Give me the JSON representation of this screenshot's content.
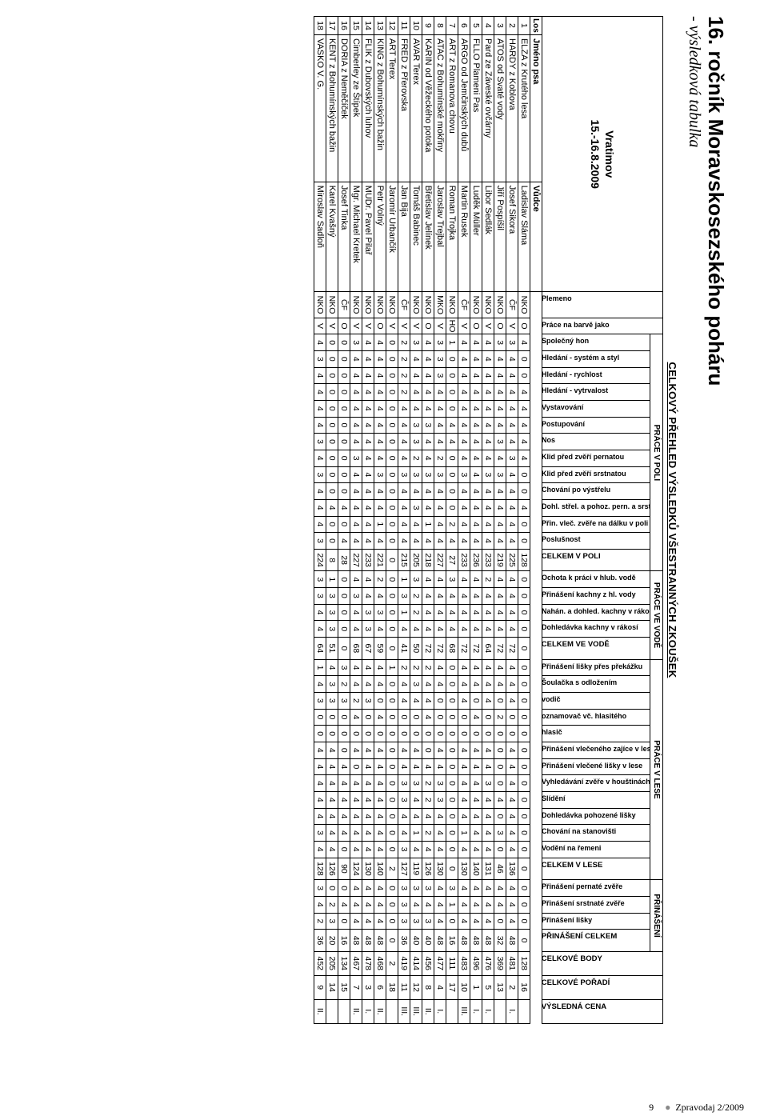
{
  "page_title": "16. ročník Moravskosezského poháru",
  "page_subtitle": "- výsledková tabulka",
  "overview_title": "CELKOVÝ PŘEHLED VÝSLEDKŮ VŠESTRANNÝCH ZKOUŠEK",
  "event": {
    "place": "Vratimov",
    "date": "15.-16.8.2009"
  },
  "head": {
    "los": "Los",
    "dog": "Jméno psa",
    "handler": "Vůdce",
    "breed": "Plemeno",
    "color_work": "Práce na barvě jako"
  },
  "sections": {
    "field": "PRÁCE V POLI",
    "water": "PRÁCE VE VODĚ",
    "forest": "PRÁCE V LESE",
    "retrieve": "PŘINÁŠENÍ"
  },
  "field_cols": [
    "Společný hon",
    "Hledání - systém a styl",
    "Hledání - rychlost",
    "Hledání - vytrvalost",
    "Vystavování",
    "Postupování",
    "Nos",
    "Klid před zvěří pernatou",
    "Klid před zvěří srstnatou",
    "Chování po výstřelu",
    "Dohl. střel. a pohoz. pern. a srst.",
    "Přin. vleč. zvěře na dálku v poli",
    "Poslušnost"
  ],
  "field_sum": "CELKEM V POLI",
  "water_cols": [
    "Ochota k práci v hlub. vodě",
    "Přinášení kachny z hl. vody",
    "Nahán. a dohled. kachny v rákosí",
    "Dohledávka kachny v rákosí"
  ],
  "water_sum": "CELKEM VE VODĚ",
  "forest_cols": [
    "Přinášení lišky přes překážku",
    "Šoulačka s odložením",
    "vodič",
    "oznamovač vč. hlasitého",
    "hlasič",
    "Přinášení vlečeného zajíce v lese",
    "Přinášení vlečené lišky v lese",
    "Vyhledávání zvěře v houštinách",
    "Slídění",
    "Dohledávka pohozené lišky",
    "Chování na stanovišti",
    "Vodění na řemeni"
  ],
  "forest_sum": "CELKEM V LESE",
  "retrieve_cols": [
    "Přinášení pernaté zvěře",
    "Přinášení srstnaté zvěře",
    "Přinášení lišky"
  ],
  "retrieve_sum": "PŘINÁŠENÍ CELKEM",
  "end_cols": [
    "CELKOVÉ BODY",
    "CELKOVÉ POŘADÍ",
    "VÝSLEDNÁ CENA"
  ],
  "rows": [
    {
      "los": "1",
      "dog": "ELZA z Krutého lesa",
      "handler": "Ladislav Sláma",
      "breed": "NKO",
      "cw": "O",
      "field": [
        "4",
        "0",
        "0",
        "4",
        "4",
        "4",
        "4",
        "4",
        "0",
        "0",
        "4",
        "0",
        "0"
      ],
      "field_sum": "128",
      "water": [
        "0",
        "0",
        "0",
        "0"
      ],
      "water_sum": "0",
      "forest": [
        "0",
        "0",
        "0",
        "0",
        "0",
        "0",
        "0",
        "0",
        "0",
        "0",
        "0",
        "0"
      ],
      "forest_sum": "0",
      "retr": [
        "0",
        "0",
        "0"
      ],
      "retr_sum": "0",
      "body": "128",
      "rank": "16",
      "prize": ""
    },
    {
      "los": "2",
      "dog": "HARDY z Koblova",
      "handler": "Josef Sikora",
      "breed": "ČF",
      "cw": "V",
      "field": [
        "3",
        "4",
        "4",
        "4",
        "4",
        "4",
        "4",
        "3",
        "4",
        "4",
        "4",
        "4",
        "4"
      ],
      "field_sum": "225",
      "water": [
        "4",
        "4",
        "4",
        "4"
      ],
      "water_sum": "72",
      "forest": [
        "4",
        "4",
        "4",
        "0",
        "0",
        "4",
        "4",
        "4",
        "4",
        "4",
        "4",
        "4"
      ],
      "forest_sum": "136",
      "retr": [
        "4",
        "4",
        "4"
      ],
      "retr_sum": "48",
      "body": "481",
      "rank": "2",
      "prize": "I."
    },
    {
      "los": "3",
      "dog": "ATOS od Svaté vody",
      "handler": "Jiří Pospíšil",
      "breed": "NKO",
      "cw": "O",
      "field": [
        "3",
        "4",
        "4",
        "4",
        "4",
        "4",
        "3",
        "4",
        "3",
        "4",
        "4",
        "4",
        "4"
      ],
      "field_sum": "219",
      "water": [
        "4",
        "4",
        "4",
        "4"
      ],
      "water_sum": "72",
      "forest": [
        "4",
        "4",
        "0",
        "2",
        "0",
        "0",
        "0",
        "0",
        "4",
        "0",
        "3",
        "0"
      ],
      "forest_sum": "46",
      "retr": [
        "4",
        "4",
        "0"
      ],
      "retr_sum": "32",
      "body": "369",
      "rank": "13",
      "prize": ""
    },
    {
      "los": "4",
      "dog": "Pard ze Záveské ovčárny",
      "handler": "Libor Sedlák",
      "breed": "NKO",
      "cw": "V",
      "field": [
        "4",
        "4",
        "4",
        "4",
        "4",
        "4",
        "4",
        "4",
        "3",
        "4",
        "4",
        "4",
        "4"
      ],
      "field_sum": "233",
      "water": [
        "2",
        "4",
        "4",
        "4"
      ],
      "water_sum": "64",
      "forest": [
        "4",
        "4",
        "4",
        "0",
        "0",
        "4",
        "4",
        "3",
        "4",
        "4",
        "4",
        "4"
      ],
      "forest_sum": "131",
      "retr": [
        "4",
        "4",
        "4"
      ],
      "retr_sum": "48",
      "body": "476",
      "rank": "5",
      "prize": "I."
    },
    {
      "los": "5",
      "dog": "FLLO Plameni Pas",
      "handler": "Luděk Müller",
      "breed": "NKO",
      "cw": "O",
      "field": [
        "4",
        "4",
        "4",
        "4",
        "4",
        "4",
        "4",
        "4",
        "4",
        "4",
        "4",
        "4",
        "4"
      ],
      "field_sum": "236",
      "water": [
        "4",
        "4",
        "4",
        "4"
      ],
      "water_sum": "72",
      "forest": [
        "4",
        "4",
        "0",
        "4",
        "0",
        "4",
        "4",
        "4",
        "4",
        "4",
        "4",
        "4"
      ],
      "forest_sum": "140",
      "retr": [
        "4",
        "4",
        "4"
      ],
      "retr_sum": "48",
      "body": "496",
      "rank": "1",
      "prize": "I."
    },
    {
      "los": "6",
      "dog": "ARGO od Jemčinských dubů",
      "handler": "Martin Rusek",
      "breed": "ČF",
      "cw": "V",
      "field": [
        "4",
        "4",
        "4",
        "4",
        "4",
        "4",
        "4",
        "4",
        "3",
        "4",
        "4",
        "4",
        "4"
      ],
      "field_sum": "233",
      "water": [
        "4",
        "4",
        "4",
        "4"
      ],
      "water_sum": "72",
      "forest": [
        "4",
        "4",
        "4",
        "0",
        "0",
        "4",
        "4",
        "4",
        "4",
        "4",
        "1",
        "4"
      ],
      "forest_sum": "130",
      "retr": [
        "4",
        "4",
        "4"
      ],
      "retr_sum": "48",
      "body": "483",
      "rank": "10",
      "prize": "III."
    },
    {
      "los": "7",
      "dog": "ART z Romanova chovu",
      "handler": "Roman Trojka",
      "breed": "NKO",
      "cw": "HO",
      "field": [
        "1",
        "0",
        "0",
        "0",
        "0",
        "4",
        "4",
        "0",
        "0",
        "0",
        "0",
        "2",
        "4"
      ],
      "field_sum": "27",
      "water": [
        "3",
        "4",
        "4",
        "4"
      ],
      "water_sum": "68",
      "forest": [
        "0",
        "0",
        "0",
        "0",
        "0",
        "0",
        "0",
        "0",
        "0",
        "0",
        "0",
        "0"
      ],
      "forest_sum": "0",
      "retr": [
        "3",
        "1",
        "0"
      ],
      "retr_sum": "16",
      "body": "111",
      "rank": "17",
      "prize": ""
    },
    {
      "los": "8",
      "dog": "ATAC z Bohumínské mokřiny",
      "handler": "Jaroslav Trejbal",
      "breed": "MKO",
      "cw": "V",
      "field": [
        "3",
        "3",
        "3",
        "4",
        "4",
        "4",
        "4",
        "2",
        "3",
        "4",
        "4",
        "4",
        "4"
      ],
      "field_sum": "227",
      "water": [
        "4",
        "4",
        "4",
        "4"
      ],
      "water_sum": "72",
      "forest": [
        "4",
        "4",
        "0",
        "0",
        "0",
        "4",
        "4",
        "3",
        "3",
        "4",
        "4",
        "4"
      ],
      "forest_sum": "130",
      "retr": [
        "4",
        "4",
        "4"
      ],
      "retr_sum": "48",
      "body": "477",
      "rank": "4",
      "prize": "I."
    },
    {
      "los": "9",
      "dog": "KARIN od Věžeckého potoka",
      "handler": "Břetislav Jelínek",
      "breed": "NKO",
      "cw": "O",
      "field": [
        "4",
        "4",
        "4",
        "4",
        "4",
        "3",
        "4",
        "4",
        "3",
        "4",
        "4",
        "1",
        "4"
      ],
      "field_sum": "218",
      "water": [
        "4",
        "4",
        "4",
        "4"
      ],
      "water_sum": "72",
      "forest": [
        "2",
        "4",
        "4",
        "4",
        "0",
        "0",
        "4",
        "2",
        "2",
        "4",
        "2",
        "4"
      ],
      "forest_sum": "126",
      "retr": [
        "3",
        "4",
        "3"
      ],
      "retr_sum": "40",
      "body": "456",
      "rank": "8",
      "prize": "II."
    },
    {
      "los": "10",
      "dog": "AVAR Terex",
      "handler": "Tomáš Babinec",
      "breed": "NKO",
      "cw": "V",
      "field": [
        "3",
        "4",
        "4",
        "4",
        "4",
        "3",
        "3",
        "2",
        "3",
        "4",
        "3",
        "4",
        "4"
      ],
      "field_sum": "205",
      "water": [
        "3",
        "2",
        "2",
        "4"
      ],
      "water_sum": "50",
      "forest": [
        "2",
        "3",
        "4",
        "0",
        "0",
        "4",
        "4",
        "3",
        "4",
        "4",
        "1",
        "4"
      ],
      "forest_sum": "119",
      "retr": [
        "3",
        "4",
        "3"
      ],
      "retr_sum": "40",
      "body": "414",
      "rank": "12",
      "prize": "III."
    },
    {
      "los": "11",
      "dog": "FRED z Přerovska",
      "handler": "Jan Bija",
      "breed": "ČF",
      "cw": "V",
      "field": [
        "2",
        "2",
        "2",
        "2",
        "4",
        "4",
        "4",
        "4",
        "3",
        "4",
        "4",
        "4",
        "4"
      ],
      "field_sum": "215",
      "water": [
        "1",
        "3",
        "1",
        "4"
      ],
      "water_sum": "41",
      "forest": [
        "2",
        "4",
        "4",
        "0",
        "0",
        "4",
        "4",
        "3",
        "3",
        "4",
        "4",
        "3"
      ],
      "forest_sum": "127",
      "retr": [
        "3",
        "3",
        "3"
      ],
      "retr_sum": "36",
      "body": "419",
      "rank": "11",
      "prize": "III."
    },
    {
      "los": "12",
      "dog": "ART Terex",
      "handler": "Jaromír Urbančík",
      "breed": "NKO",
      "cw": "V",
      "field": [
        "0",
        "0",
        "0",
        "0",
        "0",
        "0",
        "0",
        "0",
        "0",
        "0",
        "0",
        "0",
        "0"
      ],
      "field_sum": "0",
      "water": [
        "0",
        "0",
        "0",
        "0"
      ],
      "water_sum": "0",
      "forest": [
        "1",
        "0",
        "0",
        "0",
        "0",
        "0",
        "0",
        "0",
        "0",
        "0",
        "0",
        "0"
      ],
      "forest_sum": "2",
      "retr": [
        "0",
        "0",
        "0"
      ],
      "retr_sum": "0",
      "body": "2",
      "rank": "18",
      "prize": ""
    },
    {
      "los": "13",
      "dog": "KING z Bohumínských bažin",
      "handler": "Petr Volný",
      "breed": "NKO",
      "cw": "O",
      "field": [
        "4",
        "4",
        "4",
        "4",
        "4",
        "4",
        "4",
        "4",
        "3",
        "4",
        "4",
        "1",
        "4"
      ],
      "field_sum": "221",
      "water": [
        "2",
        "4",
        "3",
        "4"
      ],
      "water_sum": "59",
      "forest": [
        "4",
        "4",
        "0",
        "4",
        "0",
        "4",
        "4",
        "4",
        "4",
        "4",
        "4",
        "4"
      ],
      "forest_sum": "140",
      "retr": [
        "4",
        "4",
        "4"
      ],
      "retr_sum": "48",
      "body": "468",
      "rank": "6",
      "prize": "II."
    },
    {
      "los": "14",
      "dog": "FLIK z Dubovských luhov",
      "handler": "MUDr. Pavel Pilař",
      "breed": "NKO",
      "cw": "V",
      "field": [
        "4",
        "4",
        "4",
        "4",
        "4",
        "4",
        "4",
        "4",
        "4",
        "4",
        "4",
        "4",
        "4"
      ],
      "field_sum": "233",
      "water": [
        "4",
        "4",
        "3",
        "3"
      ],
      "water_sum": "67",
      "forest": [
        "4",
        "4",
        "3",
        "0",
        "0",
        "4",
        "4",
        "4",
        "4",
        "4",
        "4",
        "4"
      ],
      "forest_sum": "130",
      "retr": [
        "4",
        "4",
        "4"
      ],
      "retr_sum": "48",
      "body": "478",
      "rank": "3",
      "prize": "I."
    },
    {
      "los": "15",
      "dog": "Cimberley ze Štípek",
      "handler": "Mgr. Michael Kretek",
      "breed": "NKO",
      "cw": "V",
      "field": [
        "3",
        "4",
        "4",
        "4",
        "4",
        "4",
        "4",
        "3",
        "4",
        "4",
        "4",
        "4",
        "4"
      ],
      "field_sum": "227",
      "water": [
        "4",
        "3",
        "4",
        "4"
      ],
      "water_sum": "68",
      "forest": [
        "4",
        "4",
        "2",
        "4",
        "0",
        "4",
        "0",
        "4",
        "4",
        "4",
        "4",
        "4"
      ],
      "forest_sum": "124",
      "retr": [
        "4",
        "4",
        "4"
      ],
      "retr_sum": "48",
      "body": "467",
      "rank": "7",
      "prize": "II."
    },
    {
      "los": "16",
      "dog": "DORIA z Neměčíček",
      "handler": "Josef Tinka",
      "breed": "ČF",
      "cw": "O",
      "field": [
        "0",
        "0",
        "0",
        "0",
        "0",
        "0",
        "0",
        "0",
        "0",
        "0",
        "4",
        "0",
        "4"
      ],
      "field_sum": "28",
      "water": [
        "0",
        "0",
        "0",
        "0"
      ],
      "water_sum": "0",
      "forest": [
        "3",
        "2",
        "3",
        "0",
        "0",
        "0",
        "4",
        "4",
        "4",
        "4",
        "4",
        "0"
      ],
      "forest_sum": "90",
      "retr": [
        "0",
        "4",
        "0"
      ],
      "retr_sum": "16",
      "body": "134",
      "rank": "15",
      "prize": ""
    },
    {
      "los": "17",
      "dog": "KENT z Bohumínských bažin",
      "handler": "Karel Kvašný",
      "breed": "NKO",
      "cw": "V",
      "field": [
        "0",
        "0",
        "0",
        "0",
        "0",
        "0",
        "0",
        "0",
        "0",
        "0",
        "4",
        "0",
        "0"
      ],
      "field_sum": "8",
      "water": [
        "1",
        "3",
        "3",
        "3"
      ],
      "water_sum": "51",
      "forest": [
        "4",
        "3",
        "3",
        "0",
        "0",
        "4",
        "4",
        "4",
        "4",
        "4",
        "4",
        "4"
      ],
      "forest_sum": "126",
      "retr": [
        "0",
        "2",
        "3"
      ],
      "retr_sum": "20",
      "body": "205",
      "rank": "14",
      "prize": ""
    },
    {
      "los": "18",
      "dog": "VASKO V. G.",
      "handler": "Miroslav Sadloň",
      "breed": "NKO",
      "cw": "V",
      "field": [
        "4",
        "3",
        "4",
        "4",
        "4",
        "4",
        "3",
        "4",
        "3",
        "4",
        "4",
        "4",
        "3"
      ],
      "field_sum": "224",
      "water": [
        "3",
        "3",
        "4",
        "4"
      ],
      "water_sum": "64",
      "forest": [
        "1",
        "4",
        "3",
        "0",
        "0",
        "4",
        "4",
        "4",
        "4",
        "4",
        "3",
        "4"
      ],
      "forest_sum": "128",
      "retr": [
        "3",
        "4",
        "2"
      ],
      "retr_sum": "36",
      "body": "452",
      "rank": "9",
      "prize": "II."
    }
  ],
  "footer": {
    "page": "9",
    "pub": "Zpravodaj 2/2009"
  }
}
